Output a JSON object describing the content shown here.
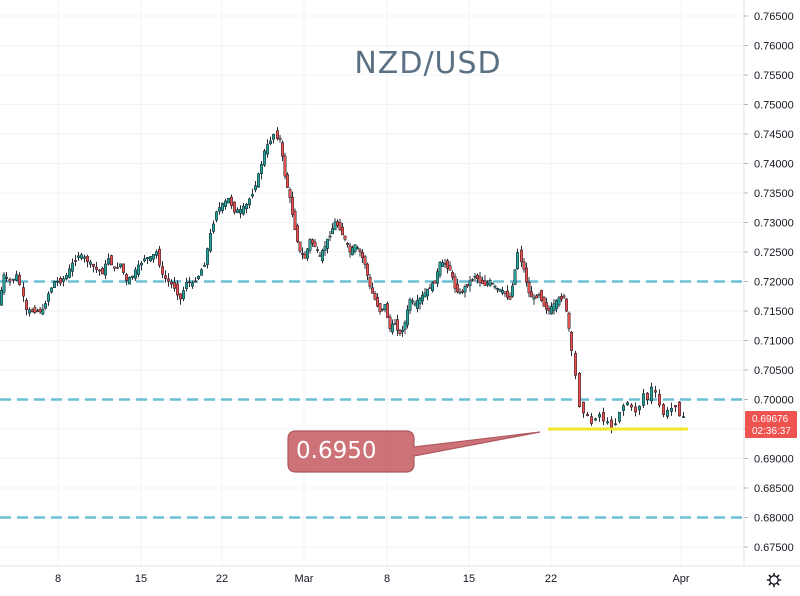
{
  "chart_data": {
    "type": "candlestick",
    "title": "NZD/USD",
    "y_axis": {
      "ticks": [
        "0.76500",
        "0.76000",
        "0.75500",
        "0.75000",
        "0.74500",
        "0.74000",
        "0.73500",
        "0.73000",
        "0.72500",
        "0.72000",
        "0.71500",
        "0.71000",
        "0.70500",
        "0.70000",
        "0.69500",
        "0.69000",
        "0.68500",
        "0.68000",
        "0.67500"
      ],
      "range": [
        0.672,
        0.769
      ]
    },
    "x_axis": {
      "ticks": [
        "8",
        "15",
        "22",
        "Mar",
        "8",
        "15",
        "22",
        "Apr"
      ]
    },
    "grid": true,
    "horizontal_levels": [
      {
        "price": 0.72,
        "style": "dashed",
        "color": "#6bc0d4"
      },
      {
        "price": 0.7,
        "style": "dashed",
        "color": "#6bc0d4"
      },
      {
        "price": 0.68,
        "style": "dashed",
        "color": "#6bc0d4"
      }
    ],
    "support_line": {
      "price": 0.695,
      "color": "#f0e62d",
      "from_date": "Mar 22",
      "to_date": "Apr 1"
    },
    "callout": {
      "label": "0.6950",
      "color": "#c9676b"
    },
    "current_price": {
      "value": "0.69676",
      "countdown": "02:36:37",
      "color": "#ef5350"
    },
    "path_points": [
      [
        0,
        0.716
      ],
      [
        5,
        0.721
      ],
      [
        12,
        0.72
      ],
      [
        18,
        0.721
      ],
      [
        22,
        0.7195
      ],
      [
        28,
        0.715
      ],
      [
        36,
        0.715
      ],
      [
        44,
        0.715
      ],
      [
        50,
        0.718
      ],
      [
        56,
        0.72
      ],
      [
        62,
        0.72
      ],
      [
        68,
        0.721
      ],
      [
        74,
        0.723
      ],
      [
        80,
        0.7245
      ],
      [
        86,
        0.724
      ],
      [
        92,
        0.723
      ],
      [
        98,
        0.722
      ],
      [
        104,
        0.7215
      ],
      [
        110,
        0.724
      ],
      [
        116,
        0.722
      ],
      [
        122,
        0.723
      ],
      [
        128,
        0.72
      ],
      [
        134,
        0.721
      ],
      [
        140,
        0.7225
      ],
      [
        146,
        0.724
      ],
      [
        152,
        0.724
      ],
      [
        158,
        0.725
      ],
      [
        164,
        0.721
      ],
      [
        170,
        0.72
      ],
      [
        176,
        0.719
      ],
      [
        182,
        0.717
      ],
      [
        188,
        0.72
      ],
      [
        194,
        0.7195
      ],
      [
        200,
        0.721
      ],
      [
        206,
        0.723
      ],
      [
        212,
        0.728
      ],
      [
        218,
        0.732
      ],
      [
        224,
        0.733
      ],
      [
        230,
        0.734
      ],
      [
        236,
        0.732
      ],
      [
        242,
        0.732
      ],
      [
        248,
        0.733
      ],
      [
        254,
        0.735
      ],
      [
        260,
        0.738
      ],
      [
        266,
        0.742
      ],
      [
        272,
        0.744
      ],
      [
        276,
        0.745
      ],
      [
        281,
        0.744
      ],
      [
        286,
        0.738
      ],
      [
        291,
        0.734
      ],
      [
        296,
        0.729
      ],
      [
        301,
        0.725
      ],
      [
        306,
        0.724
      ],
      [
        311,
        0.727
      ],
      [
        316,
        0.726
      ],
      [
        321,
        0.724
      ],
      [
        326,
        0.726
      ],
      [
        331,
        0.728
      ],
      [
        336,
        0.73
      ],
      [
        341,
        0.729
      ],
      [
        346,
        0.727
      ],
      [
        351,
        0.725
      ],
      [
        356,
        0.726
      ],
      [
        361,
        0.725
      ],
      [
        366,
        0.723
      ],
      [
        371,
        0.719
      ],
      [
        376,
        0.717
      ],
      [
        381,
        0.715
      ],
      [
        386,
        0.716
      ],
      [
        391,
        0.712
      ],
      [
        396,
        0.713
      ],
      [
        401,
        0.711
      ],
      [
        406,
        0.713
      ],
      [
        411,
        0.717
      ],
      [
        416,
        0.716
      ],
      [
        421,
        0.717
      ],
      [
        426,
        0.718
      ],
      [
        431,
        0.719
      ],
      [
        436,
        0.72
      ],
      [
        441,
        0.723
      ],
      [
        446,
        0.723
      ],
      [
        451,
        0.722
      ],
      [
        456,
        0.719
      ],
      [
        461,
        0.718
      ],
      [
        466,
        0.719
      ],
      [
        471,
        0.72
      ],
      [
        476,
        0.721
      ],
      [
        481,
        0.72
      ],
      [
        486,
        0.7195
      ],
      [
        491,
        0.72
      ],
      [
        496,
        0.719
      ],
      [
        501,
        0.7185
      ],
      [
        506,
        0.718
      ],
      [
        511,
        0.717
      ],
      [
        516,
        0.722
      ],
      [
        520,
        0.725
      ],
      [
        525,
        0.722
      ],
      [
        530,
        0.718
      ],
      [
        535,
        0.717
      ],
      [
        540,
        0.718
      ],
      [
        545,
        0.716
      ],
      [
        550,
        0.715
      ],
      [
        555,
        0.716
      ],
      [
        560,
        0.717
      ],
      [
        565,
        0.7175
      ],
      [
        570,
        0.712
      ],
      [
        574,
        0.708
      ],
      [
        578,
        0.704
      ],
      [
        582,
        0.699
      ],
      [
        586,
        0.698
      ],
      [
        590,
        0.697
      ],
      [
        594,
        0.696
      ],
      [
        598,
        0.697
      ],
      [
        602,
        0.6975
      ],
      [
        606,
        0.6965
      ],
      [
        610,
        0.696
      ],
      [
        614,
        0.6955
      ],
      [
        618,
        0.696
      ],
      [
        622,
        0.698
      ],
      [
        626,
        0.699
      ],
      [
        630,
        0.6995
      ],
      [
        634,
        0.6985
      ],
      [
        638,
        0.698
      ],
      [
        642,
        0.699
      ],
      [
        646,
        0.701
      ],
      [
        650,
        0.7
      ],
      [
        654,
        0.702
      ],
      [
        658,
        0.701
      ],
      [
        662,
        0.699
      ],
      [
        666,
        0.6975
      ],
      [
        670,
        0.698
      ],
      [
        674,
        0.6985
      ],
      [
        678,
        0.699
      ],
      [
        682,
        0.6975
      ],
      [
        686,
        0.6968
      ]
    ]
  }
}
